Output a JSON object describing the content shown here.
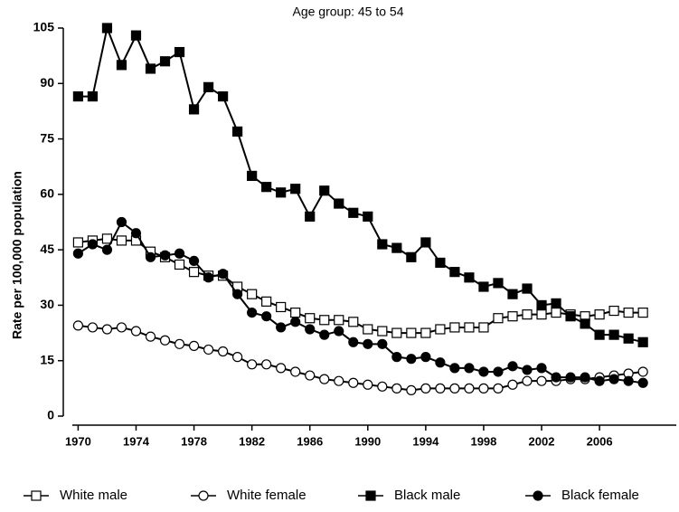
{
  "chart_data": {
    "type": "line",
    "title": "Age group: 45 to 54",
    "ylabel": "Rate per 100,000 population",
    "x": [
      1970,
      1971,
      1972,
      1973,
      1974,
      1975,
      1976,
      1977,
      1978,
      1979,
      1980,
      1981,
      1982,
      1983,
      1984,
      1985,
      1986,
      1987,
      1988,
      1989,
      1990,
      1991,
      1992,
      1993,
      1994,
      1995,
      1996,
      1997,
      1998,
      1999,
      2000,
      2001,
      2002,
      2003,
      2004,
      2005,
      2006,
      2007,
      2008,
      2009
    ],
    "xlim": [
      1969.6,
      2011.3
    ],
    "xticks": [
      1970,
      1974,
      1978,
      1982,
      1986,
      1990,
      1994,
      1998,
      2002,
      2006
    ],
    "ylim": [
      0,
      105
    ],
    "yticks": [
      0,
      15,
      30,
      45,
      60,
      75,
      90,
      105
    ],
    "series": [
      {
        "name": "White male",
        "color": "#000000",
        "marker": "square",
        "filled": false,
        "values": [
          47,
          47.5,
          48,
          47.5,
          47.5,
          44.5,
          43,
          41,
          39,
          38,
          38,
          35,
          33,
          31,
          29.5,
          28,
          26.5,
          26,
          26,
          25.5,
          23.5,
          23,
          22.5,
          22.5,
          22.5,
          23.5,
          24,
          24,
          24,
          26.5,
          27,
          27.5,
          27.5,
          28,
          27.5,
          27,
          27.5,
          28.5,
          28,
          28
        ]
      },
      {
        "name": "White female",
        "color": "#000000",
        "marker": "circle",
        "filled": false,
        "values": [
          24.5,
          24,
          23.5,
          24,
          23,
          21.5,
          20.5,
          19.5,
          19,
          18,
          17.5,
          16,
          14,
          14,
          13,
          12,
          11,
          10,
          9.5,
          9,
          8.5,
          8,
          7.5,
          7,
          7.5,
          7.5,
          7.5,
          7.5,
          7.5,
          7.5,
          8.5,
          9.5,
          9.5,
          9.5,
          10,
          10,
          10.5,
          11,
          11.5,
          12
        ]
      },
      {
        "name": "Black male",
        "color": "#000000",
        "marker": "square",
        "filled": true,
        "values": [
          86.5,
          86.5,
          105,
          95,
          103,
          94,
          96,
          98.5,
          83,
          89,
          86.5,
          77,
          65,
          62,
          60.5,
          61.5,
          54,
          61,
          57.5,
          55,
          54,
          46.5,
          45.5,
          43,
          47,
          41.5,
          39,
          37.5,
          35,
          36,
          33,
          34.5,
          30,
          30.5,
          27,
          25,
          22,
          22,
          21,
          20
        ]
      },
      {
        "name": "Black female",
        "color": "#000000",
        "marker": "circle",
        "filled": true,
        "values": [
          44,
          46.5,
          45,
          52.5,
          49.5,
          43,
          43.5,
          44,
          42,
          37.5,
          38.5,
          33,
          28,
          27,
          24,
          25.5,
          23.5,
          22,
          23,
          20,
          19.5,
          19.5,
          16,
          15.5,
          16,
          14.5,
          13,
          13,
          12,
          12,
          13.5,
          12.5,
          13,
          10.5,
          10.5,
          10.5,
          9.5,
          10,
          9.5,
          9
        ]
      }
    ]
  }
}
